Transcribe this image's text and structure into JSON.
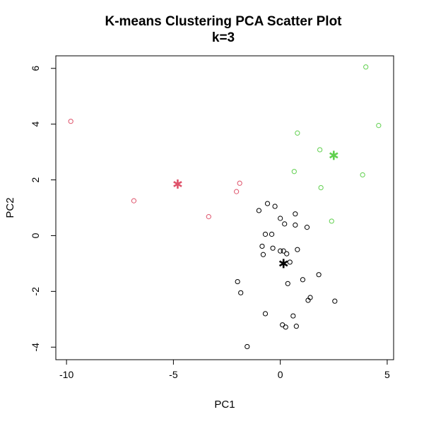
{
  "chart_data": {
    "type": "scatter",
    "title": "K-means Clustering PCA Scatter Plot",
    "subtitle": "k=3",
    "xlabel": "PC1",
    "ylabel": "PC2",
    "xlim": [
      -10.5,
      5.3
    ],
    "ylim": [
      -4.45,
      6.45
    ],
    "x_ticks": [
      -10,
      -5,
      0,
      5
    ],
    "y_ticks": [
      -4,
      -2,
      0,
      2,
      4,
      6
    ],
    "grid": false,
    "legend": "none",
    "series": [
      {
        "color": "#DF536B",
        "marker": "open-circle",
        "points": [
          [
            -9.8,
            4.1
          ],
          [
            -6.85,
            1.25
          ],
          [
            -3.35,
            0.68
          ],
          [
            -2.05,
            1.58
          ],
          [
            -1.9,
            1.88
          ]
        ],
        "center": [
          -4.8,
          1.85
        ]
      },
      {
        "color": "#61D04F",
        "marker": "open-circle",
        "points": [
          [
            4.0,
            6.05
          ],
          [
            4.6,
            3.95
          ],
          [
            0.8,
            3.68
          ],
          [
            1.85,
            3.08
          ],
          [
            0.65,
            2.3
          ],
          [
            3.85,
            2.18
          ],
          [
            1.9,
            1.72
          ],
          [
            2.4,
            0.52
          ]
        ],
        "center": [
          2.5,
          2.88
        ]
      },
      {
        "color": "#000000",
        "marker": "open-circle",
        "points": [
          [
            -0.6,
            1.15
          ],
          [
            -0.25,
            1.05
          ],
          [
            -1.0,
            0.9
          ],
          [
            0.7,
            0.78
          ],
          [
            0.0,
            0.62
          ],
          [
            0.2,
            0.42
          ],
          [
            0.7,
            0.38
          ],
          [
            1.25,
            0.3
          ],
          [
            -0.7,
            0.05
          ],
          [
            -0.4,
            0.05
          ],
          [
            -0.85,
            -0.38
          ],
          [
            -0.35,
            -0.45
          ],
          [
            0.0,
            -0.55
          ],
          [
            0.15,
            -0.55
          ],
          [
            0.8,
            -0.5
          ],
          [
            -0.8,
            -0.68
          ],
          [
            0.3,
            -0.65
          ],
          [
            0.45,
            -0.95
          ],
          [
            1.05,
            -1.58
          ],
          [
            1.8,
            -1.4
          ],
          [
            -2.0,
            -1.65
          ],
          [
            0.35,
            -1.72
          ],
          [
            -1.85,
            -2.05
          ],
          [
            1.4,
            -2.22
          ],
          [
            1.3,
            -2.32
          ],
          [
            2.55,
            -2.35
          ],
          [
            -0.7,
            -2.8
          ],
          [
            0.6,
            -2.88
          ],
          [
            0.1,
            -3.2
          ],
          [
            0.25,
            -3.28
          ],
          [
            0.75,
            -3.25
          ],
          [
            -1.55,
            -3.98
          ]
        ],
        "center": [
          0.15,
          -1.0
        ]
      }
    ]
  }
}
